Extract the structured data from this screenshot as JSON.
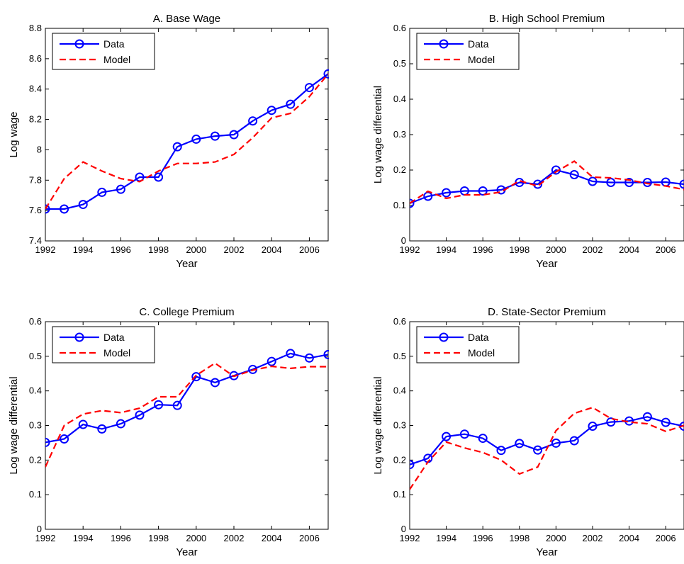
{
  "chart_data": [
    {
      "type": "line",
      "title": "A. Base Wage",
      "xlabel": "Year",
      "ylabel": "Log wage",
      "xlim": [
        1992,
        2007
      ],
      "ylim": [
        7.4,
        8.8
      ],
      "xticks": [
        1992,
        1994,
        1996,
        1998,
        2000,
        2002,
        2004,
        2006
      ],
      "yticks": [
        "7.4",
        "7.6",
        "7.8",
        "8",
        "8.2",
        "8.4",
        "8.6",
        "8.8"
      ],
      "legend": [
        "Data",
        "Model"
      ],
      "legend_position": "top-left",
      "x": [
        1992,
        1993,
        1994,
        1995,
        1996,
        1997,
        1998,
        1999,
        2000,
        2001,
        2002,
        2003,
        2004,
        2005,
        2006,
        2007
      ],
      "series": [
        {
          "name": "Data",
          "color": "#0000ff",
          "style": "solid-circle",
          "values": [
            7.61,
            7.61,
            7.64,
            7.72,
            7.74,
            7.82,
            7.82,
            8.02,
            8.07,
            8.09,
            8.1,
            8.19,
            8.26,
            8.3,
            8.41,
            8.5
          ]
        },
        {
          "name": "Model",
          "color": "#ff0000",
          "style": "dashed",
          "values": [
            7.61,
            7.81,
            7.92,
            7.86,
            7.81,
            7.79,
            7.86,
            7.91,
            7.91,
            7.92,
            7.97,
            8.08,
            8.21,
            8.24,
            8.35,
            8.5
          ]
        }
      ]
    },
    {
      "type": "line",
      "title": "B. High School Premium",
      "xlabel": "Year",
      "ylabel": "Log wage differential",
      "xlim": [
        1992,
        2007
      ],
      "ylim": [
        0,
        0.6
      ],
      "xticks": [
        1992,
        1994,
        1996,
        1998,
        2000,
        2002,
        2004,
        2006
      ],
      "yticks": [
        "0",
        "0.1",
        "0.2",
        "0.3",
        "0.4",
        "0.5",
        "0.6"
      ],
      "legend": [
        "Data",
        "Model"
      ],
      "legend_position": "top-left",
      "x": [
        1992,
        1993,
        1994,
        1995,
        1996,
        1997,
        1998,
        1999,
        2000,
        2001,
        2002,
        2003,
        2004,
        2005,
        2006,
        2007
      ],
      "series": [
        {
          "name": "Data",
          "color": "#0000ff",
          "style": "solid-circle",
          "values": [
            0.106,
            0.126,
            0.136,
            0.141,
            0.141,
            0.144,
            0.165,
            0.16,
            0.2,
            0.187,
            0.168,
            0.165,
            0.165,
            0.165,
            0.166,
            0.16
          ]
        },
        {
          "name": "Model",
          "color": "#ff0000",
          "style": "dashed",
          "values": [
            0.106,
            0.14,
            0.12,
            0.13,
            0.13,
            0.138,
            0.17,
            0.155,
            0.195,
            0.225,
            0.18,
            0.178,
            0.172,
            0.162,
            0.155,
            0.145
          ]
        }
      ]
    },
    {
      "type": "line",
      "title": "C. College Premium",
      "xlabel": "Year",
      "ylabel": "Log wage differential",
      "xlim": [
        1992,
        2007
      ],
      "ylim": [
        0,
        0.6
      ],
      "xticks": [
        1992,
        1994,
        1996,
        1998,
        2000,
        2002,
        2004,
        2006
      ],
      "yticks": [
        "0",
        "0.1",
        "0.2",
        "0.3",
        "0.4",
        "0.5",
        "0.6"
      ],
      "legend": [
        "Data",
        "Model"
      ],
      "legend_position": "top-left",
      "x": [
        1992,
        1993,
        1994,
        1995,
        1996,
        1997,
        1998,
        1999,
        2000,
        2001,
        2002,
        2003,
        2004,
        2005,
        2006,
        2007
      ],
      "series": [
        {
          "name": "Data",
          "color": "#0000ff",
          "style": "solid-circle",
          "values": [
            0.251,
            0.261,
            0.303,
            0.29,
            0.305,
            0.33,
            0.36,
            0.358,
            0.441,
            0.424,
            0.444,
            0.462,
            0.485,
            0.508,
            0.495,
            0.505
          ]
        },
        {
          "name": "Model",
          "color": "#ff0000",
          "style": "dashed",
          "values": [
            0.18,
            0.3,
            0.333,
            0.343,
            0.337,
            0.35,
            0.383,
            0.383,
            0.445,
            0.48,
            0.442,
            0.46,
            0.471,
            0.465,
            0.47,
            0.47
          ]
        }
      ]
    },
    {
      "type": "line",
      "title": "D. State-Sector Premium",
      "xlabel": "Year",
      "ylabel": "Log wage differential",
      "xlim": [
        1992,
        2007
      ],
      "ylim": [
        0,
        0.6
      ],
      "xticks": [
        1992,
        1994,
        1996,
        1998,
        2000,
        2002,
        2004,
        2006
      ],
      "yticks": [
        "0",
        "0.1",
        "0.2",
        "0.3",
        "0.4",
        "0.5",
        "0.6"
      ],
      "legend": [
        "Data",
        "Model"
      ],
      "legend_position": "top-left",
      "x": [
        1992,
        1993,
        1994,
        1995,
        1996,
        1997,
        1998,
        1999,
        2000,
        2001,
        2002,
        2003,
        2004,
        2005,
        2006,
        2007
      ],
      "series": [
        {
          "name": "Data",
          "color": "#0000ff",
          "style": "solid-circle",
          "values": [
            0.187,
            0.205,
            0.268,
            0.275,
            0.263,
            0.228,
            0.248,
            0.229,
            0.249,
            0.256,
            0.298,
            0.31,
            0.313,
            0.325,
            0.309,
            0.298
          ]
        },
        {
          "name": "Model",
          "color": "#ff0000",
          "style": "dashed",
          "values": [
            0.115,
            0.195,
            0.252,
            0.235,
            0.222,
            0.2,
            0.16,
            0.18,
            0.285,
            0.335,
            0.352,
            0.32,
            0.31,
            0.305,
            0.283,
            0.3
          ]
        }
      ]
    }
  ]
}
